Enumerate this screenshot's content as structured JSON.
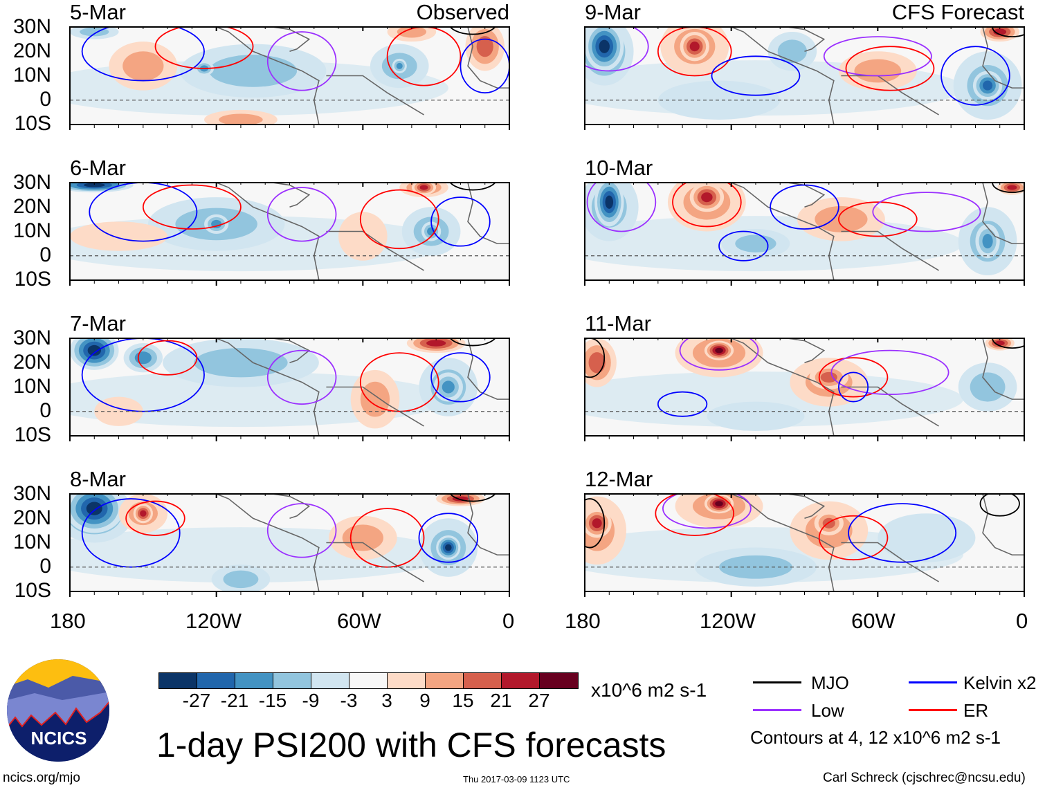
{
  "figure": {
    "title": "1-day PSI200 with CFS forecasts",
    "observed_label": "Observed",
    "forecast_label": "CFS Forecast",
    "units": "x10^6 m2 s-1",
    "contour_note": "Contours at 4, 12 x10^6 m2 s-1",
    "website": "ncics.org/mjo",
    "timestamp": "Thu 2017-03-09 1123 UTC",
    "author": "Carl Schreck (cjschrec@ncsu.edu)",
    "logo_text": "NCICS"
  },
  "axes": {
    "lat_labels": [
      "30N",
      "20N",
      "10N",
      "0",
      "10S"
    ],
    "lon_labels": [
      "180",
      "120W",
      "60W",
      "0"
    ],
    "lat_range": [
      -10,
      30
    ],
    "lon_range": [
      -180,
      0
    ]
  },
  "colorbar": {
    "colors": [
      "#0b3467",
      "#2166ac",
      "#4393c3",
      "#92c5de",
      "#d1e5f0",
      "#f7f7f7",
      "#fddbc7",
      "#f4a582",
      "#d6604d",
      "#b2182b",
      "#67001f"
    ],
    "labels": [
      "-27",
      "-21",
      "-15",
      "-9",
      "-3",
      "3",
      "9",
      "15",
      "21",
      "27"
    ],
    "levels": [
      -27,
      -21,
      -15,
      -9,
      -3,
      3,
      9,
      15,
      21,
      27
    ]
  },
  "legend": [
    {
      "label": "MJO",
      "color": "#000000"
    },
    {
      "label": "Kelvin x2",
      "color": "#0000ff"
    },
    {
      "label": "Low",
      "color": "#9b30ff"
    },
    {
      "label": "ER",
      "color": "#ff0000"
    }
  ],
  "panels": [
    {
      "date": "5-Mar",
      "anoms": [
        [
          -105,
          12,
          -9,
          30,
          11
        ],
        [
          -125,
          13,
          -15,
          4,
          3
        ],
        [
          -45,
          14,
          -9,
          12,
          9
        ],
        [
          -45,
          14,
          -15,
          3,
          3
        ],
        [
          -150,
          14,
          9,
          14,
          10
        ],
        [
          -10,
          22,
          15,
          8,
          10
        ],
        [
          -40,
          28,
          9,
          10,
          4
        ],
        [
          -170,
          28,
          -9,
          10,
          3
        ],
        [
          -110,
          -8,
          9,
          15,
          4
        ]
      ],
      "contours": [
        [
          "blue",
          -150,
          20,
          25,
          12
        ],
        [
          "purple",
          -85,
          16,
          14,
          12
        ],
        [
          "red",
          -125,
          22,
          20,
          9
        ],
        [
          "blue",
          -10,
          14,
          10,
          11
        ],
        [
          "red",
          -35,
          18,
          15,
          12
        ],
        [
          "black",
          -15,
          32,
          10,
          5
        ]
      ]
    },
    {
      "date": "9-Mar",
      "anoms": [
        [
          -172,
          20,
          -15,
          12,
          14
        ],
        [
          -172,
          22,
          -27,
          8,
          10
        ],
        [
          -135,
          22,
          9,
          14,
          12
        ],
        [
          -135,
          22,
          21,
          6,
          6
        ],
        [
          -15,
          6,
          -9,
          14,
          14
        ],
        [
          -15,
          6,
          -21,
          6,
          6
        ],
        [
          -60,
          12,
          9,
          16,
          8
        ],
        [
          -10,
          28,
          21,
          8,
          4
        ],
        [
          -95,
          20,
          -9,
          10,
          8
        ],
        [
          -125,
          0,
          -3,
          25,
          8
        ]
      ],
      "contours": [
        [
          "purple",
          -170,
          22,
          16,
          10
        ],
        [
          "red",
          -135,
          20,
          15,
          10
        ],
        [
          "blue",
          -110,
          10,
          18,
          8
        ],
        [
          "purple",
          -60,
          18,
          22,
          8
        ],
        [
          "red",
          -55,
          13,
          18,
          9
        ],
        [
          "blue",
          -20,
          10,
          14,
          12
        ],
        [
          "black",
          -5,
          30,
          8,
          4
        ]
      ]
    },
    {
      "date": "6-Mar",
      "anoms": [
        [
          -170,
          29,
          -27,
          16,
          3
        ],
        [
          -120,
          13,
          -9,
          28,
          11
        ],
        [
          -120,
          13,
          -15,
          5,
          4
        ],
        [
          -35,
          28,
          15,
          10,
          4
        ],
        [
          -35,
          28,
          21,
          5,
          3
        ],
        [
          -32,
          10,
          -9,
          12,
          10
        ],
        [
          -32,
          10,
          -15,
          4,
          4
        ],
        [
          -160,
          8,
          3,
          20,
          6
        ],
        [
          -60,
          8,
          3,
          10,
          10
        ]
      ],
      "contours": [
        [
          "blue",
          -150,
          18,
          22,
          12
        ],
        [
          "red",
          -130,
          20,
          20,
          9
        ],
        [
          "purple",
          -85,
          17,
          14,
          11
        ],
        [
          "blue",
          -20,
          14,
          12,
          10
        ],
        [
          "red",
          -45,
          15,
          16,
          12
        ],
        [
          "black",
          -15,
          32,
          10,
          5
        ]
      ]
    },
    {
      "date": "10-Mar",
      "anoms": [
        [
          -170,
          20,
          -9,
          12,
          14
        ],
        [
          -170,
          22,
          -27,
          6,
          10
        ],
        [
          -130,
          22,
          9,
          16,
          12
        ],
        [
          -130,
          24,
          21,
          7,
          6
        ],
        [
          -75,
          15,
          9,
          18,
          9
        ],
        [
          -15,
          6,
          -9,
          12,
          14
        ],
        [
          -15,
          6,
          -15,
          5,
          7
        ],
        [
          -5,
          28,
          21,
          6,
          3
        ],
        [
          -110,
          5,
          -9,
          14,
          6
        ]
      ],
      "contours": [
        [
          "purple",
          -165,
          22,
          14,
          12
        ],
        [
          "red",
          -130,
          22,
          14,
          10
        ],
        [
          "blue",
          -115,
          4,
          10,
          6
        ],
        [
          "blue",
          -90,
          20,
          14,
          9
        ],
        [
          "red",
          -60,
          15,
          16,
          7
        ],
        [
          "purple",
          -40,
          18,
          22,
          8
        ],
        [
          "black",
          -5,
          30,
          8,
          4
        ]
      ]
    },
    {
      "date": "7-Mar",
      "anoms": [
        [
          -170,
          25,
          -27,
          10,
          8
        ],
        [
          -110,
          20,
          -9,
          32,
          10
        ],
        [
          -150,
          22,
          -15,
          8,
          6
        ],
        [
          -30,
          28,
          21,
          12,
          4
        ],
        [
          -25,
          10,
          -9,
          12,
          12
        ],
        [
          -25,
          10,
          -15,
          6,
          6
        ],
        [
          -55,
          5,
          9,
          10,
          12
        ],
        [
          -160,
          0,
          3,
          10,
          6
        ]
      ],
      "contours": [
        [
          "blue",
          -150,
          15,
          25,
          15
        ],
        [
          "red",
          -140,
          22,
          12,
          7
        ],
        [
          "purple",
          -85,
          14,
          14,
          11
        ],
        [
          "red",
          -45,
          12,
          16,
          12
        ],
        [
          "blue",
          -20,
          14,
          12,
          10
        ],
        [
          "black",
          -15,
          32,
          10,
          5
        ]
      ]
    },
    {
      "date": "11-Mar",
      "anoms": [
        [
          -175,
          20,
          15,
          8,
          10
        ],
        [
          -125,
          24,
          9,
          18,
          10
        ],
        [
          -125,
          25,
          27,
          6,
          4
        ],
        [
          -80,
          12,
          9,
          16,
          10
        ],
        [
          -80,
          14,
          15,
          8,
          5
        ],
        [
          -15,
          10,
          -9,
          12,
          10
        ],
        [
          -10,
          28,
          21,
          6,
          3
        ],
        [
          -110,
          -2,
          -3,
          20,
          6
        ]
      ],
      "contours": [
        [
          "black",
          -178,
          22,
          6,
          8
        ],
        [
          "purple",
          -125,
          25,
          16,
          8
        ],
        [
          "blue",
          -140,
          3,
          10,
          5
        ],
        [
          "red",
          -70,
          14,
          14,
          8
        ],
        [
          "purple",
          -55,
          16,
          24,
          9
        ],
        [
          "blue",
          -70,
          10,
          6,
          6
        ],
        [
          "black",
          -5,
          30,
          8,
          4
        ]
      ]
    },
    {
      "date": "8-Mar",
      "anoms": [
        [
          -170,
          22,
          -15,
          16,
          12
        ],
        [
          -170,
          24,
          -27,
          12,
          10
        ],
        [
          -150,
          22,
          9,
          10,
          8
        ],
        [
          -150,
          22,
          21,
          4,
          4
        ],
        [
          -25,
          8,
          -9,
          12,
          12
        ],
        [
          -25,
          8,
          -27,
          5,
          5
        ],
        [
          -60,
          12,
          9,
          14,
          9
        ],
        [
          -20,
          28,
          21,
          10,
          3
        ],
        [
          -110,
          -5,
          -9,
          12,
          6
        ]
      ],
      "contours": [
        [
          "blue",
          -155,
          14,
          20,
          14
        ],
        [
          "red",
          -145,
          20,
          12,
          7
        ],
        [
          "purple",
          -85,
          15,
          14,
          11
        ],
        [
          "red",
          -50,
          12,
          15,
          12
        ],
        [
          "blue",
          -25,
          12,
          12,
          10
        ],
        [
          "black",
          -15,
          32,
          10,
          5
        ]
      ]
    },
    {
      "date": "12-Mar",
      "anoms": [
        [
          -175,
          15,
          9,
          12,
          14
        ],
        [
          -175,
          18,
          21,
          6,
          6
        ],
        [
          -125,
          25,
          9,
          18,
          9
        ],
        [
          -125,
          26,
          27,
          6,
          4
        ],
        [
          -80,
          15,
          9,
          16,
          12
        ],
        [
          -80,
          18,
          15,
          6,
          5
        ],
        [
          -110,
          0,
          -9,
          25,
          8
        ],
        [
          -40,
          12,
          -3,
          20,
          10
        ]
      ],
      "contours": [
        [
          "black",
          -178,
          18,
          6,
          10
        ],
        [
          "purple",
          -130,
          24,
          18,
          8
        ],
        [
          "red",
          -135,
          22,
          16,
          9
        ],
        [
          "red",
          -70,
          12,
          14,
          9
        ],
        [
          "blue",
          -50,
          14,
          22,
          12
        ],
        [
          "black",
          -10,
          26,
          8,
          5
        ]
      ]
    }
  ]
}
